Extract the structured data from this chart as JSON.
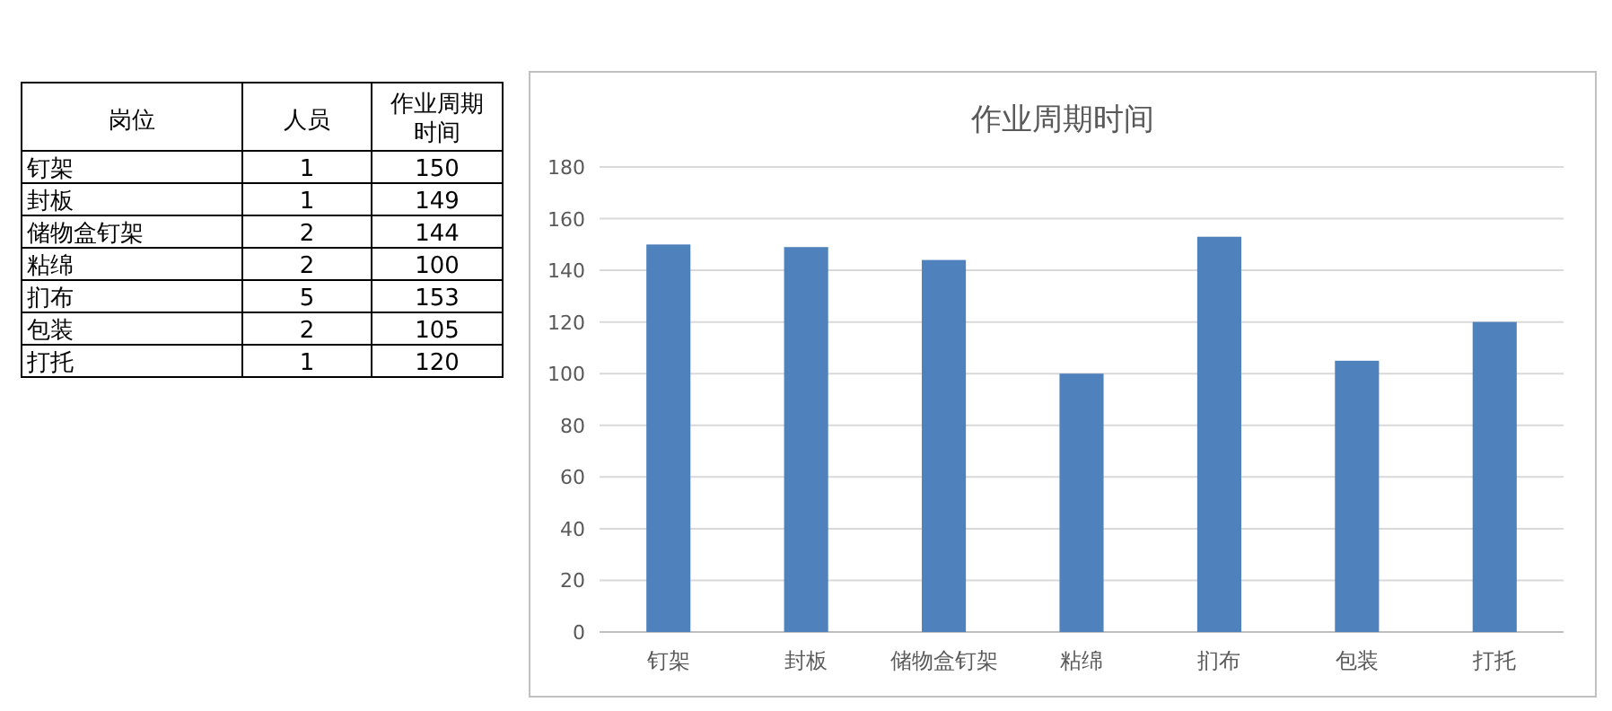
{
  "chart_data": {
    "type": "bar",
    "title": "作业周期时间",
    "categories": [
      "钉架",
      "封板",
      "储物盒钉架",
      "粘绵",
      "扪布",
      "包装",
      "打托"
    ],
    "values": [
      150,
      149,
      144,
      100,
      153,
      105,
      120
    ],
    "color": "#4f81bd",
    "ylim": [
      0,
      180
    ],
    "yticks": [
      0,
      20,
      40,
      60,
      80,
      100,
      120,
      140,
      160,
      180
    ],
    "grid": "y",
    "annotations": [
      "岗位",
      "人员",
      "作业周期",
      "时间",
      "1",
      "1",
      "2",
      "2",
      "5",
      "2",
      "1",
      "150",
      "149",
      "144",
      "100",
      "153",
      "105",
      "120"
    ]
  }
}
